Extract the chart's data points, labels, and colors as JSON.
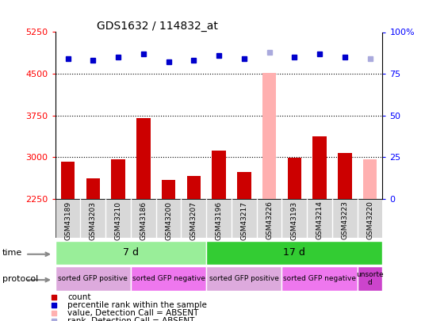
{
  "title": "GDS1632 / 114832_at",
  "samples": [
    "GSM43189",
    "GSM43203",
    "GSM43210",
    "GSM43186",
    "GSM43200",
    "GSM43207",
    "GSM43196",
    "GSM43217",
    "GSM43226",
    "GSM43193",
    "GSM43214",
    "GSM43223",
    "GSM43220"
  ],
  "counts": [
    2920,
    2620,
    2960,
    3700,
    2600,
    2670,
    3120,
    2730,
    4510,
    2990,
    3370,
    3080,
    2960
  ],
  "absent_count": [
    false,
    false,
    false,
    false,
    false,
    false,
    false,
    false,
    true,
    false,
    false,
    false,
    true
  ],
  "percentile_ranks": [
    84,
    83,
    85,
    87,
    82,
    83,
    86,
    84,
    88,
    85,
    87,
    85,
    84
  ],
  "absent_rank": [
    false,
    false,
    false,
    false,
    false,
    false,
    false,
    false,
    true,
    false,
    false,
    false,
    true
  ],
  "ylim_left": [
    2250,
    5250
  ],
  "yticks_left": [
    2250,
    3000,
    3750,
    4500,
    5250
  ],
  "yticks_right": [
    0,
    25,
    50,
    75,
    100
  ],
  "bar_color_normal": "#cc0000",
  "bar_color_absent": "#ffb0b0",
  "rank_color_normal": "#0000cc",
  "rank_color_absent": "#aaaadd",
  "plot_bg": "#ffffff",
  "sample_bg": "#d8d8d8",
  "time_groups": [
    {
      "label": "7 d",
      "start": 0,
      "end": 6,
      "color": "#99ee99"
    },
    {
      "label": "17 d",
      "start": 6,
      "end": 13,
      "color": "#33cc33"
    }
  ],
  "protocol_groups": [
    {
      "label": "sorted GFP positive",
      "start": 0,
      "end": 3,
      "color": "#ddaadd"
    },
    {
      "label": "sorted GFP negative",
      "start": 3,
      "end": 6,
      "color": "#ee77ee"
    },
    {
      "label": "sorted GFP positive",
      "start": 6,
      "end": 9,
      "color": "#ddaadd"
    },
    {
      "label": "sorted GFP negative",
      "start": 9,
      "end": 12,
      "color": "#ee77ee"
    },
    {
      "label": "unsorte\nd",
      "start": 12,
      "end": 13,
      "color": "#cc44cc"
    }
  ],
  "legend_items": [
    {
      "color": "#cc0000",
      "marker": "s",
      "label": "count"
    },
    {
      "color": "#0000cc",
      "marker": "s",
      "label": "percentile rank within the sample"
    },
    {
      "color": "#ffb0b0",
      "marker": "s",
      "label": "value, Detection Call = ABSENT"
    },
    {
      "color": "#aaaadd",
      "marker": "s",
      "label": "rank, Detection Call = ABSENT"
    }
  ]
}
